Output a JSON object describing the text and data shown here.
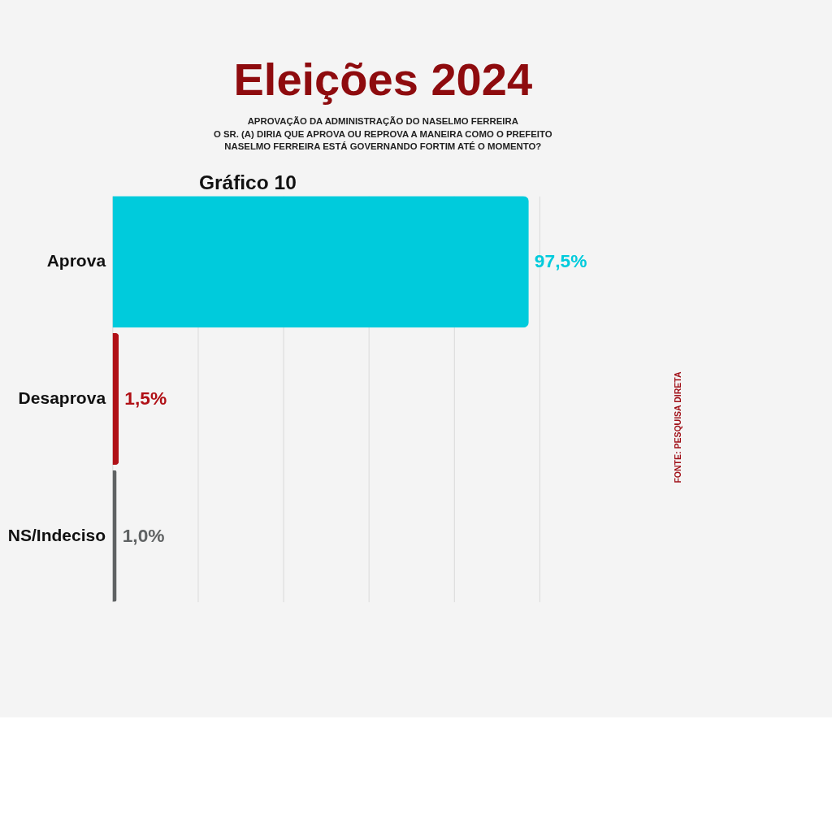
{
  "chart_data": {
    "type": "bar",
    "orientation": "horizontal",
    "title": "Eleições 2024",
    "subtitle": "APROVAÇÃO DA ADMINISTRAÇÃO DO NASELMO FERREIRA",
    "annotations": [
      "O SR. (A) DIRIA QUE APROVA OU REPROVA A MANEIRA COMO O PREFEITO NASELMO FERREIRA ESTÁ GOVERNANDO FORTIM ATÉ O MOMENTO?",
      "Gráfico 10",
      "FONTE: PESQUISA DIRETA"
    ],
    "categories": [
      "Aprova",
      "Desaprova",
      "NS/Indeciso"
    ],
    "values": [
      97.5,
      1.5,
      1.0
    ],
    "colors": [
      "#00cbdc",
      "#b01016",
      "#5f6263"
    ],
    "value_labels": [
      "97,5%",
      "1,5%",
      "1,0%"
    ],
    "xlim": [
      0,
      100
    ],
    "xticks": [
      {
        "value": 0,
        "label": null
      },
      {
        "value": 20,
        "label": null
      },
      {
        "value": 40,
        "label": null
      },
      {
        "value": 60,
        "label": null
      },
      {
        "value": 80,
        "label": null
      },
      {
        "value": 100,
        "label": null
      }
    ],
    "grid": "x",
    "tick_labels": "y"
  }
}
